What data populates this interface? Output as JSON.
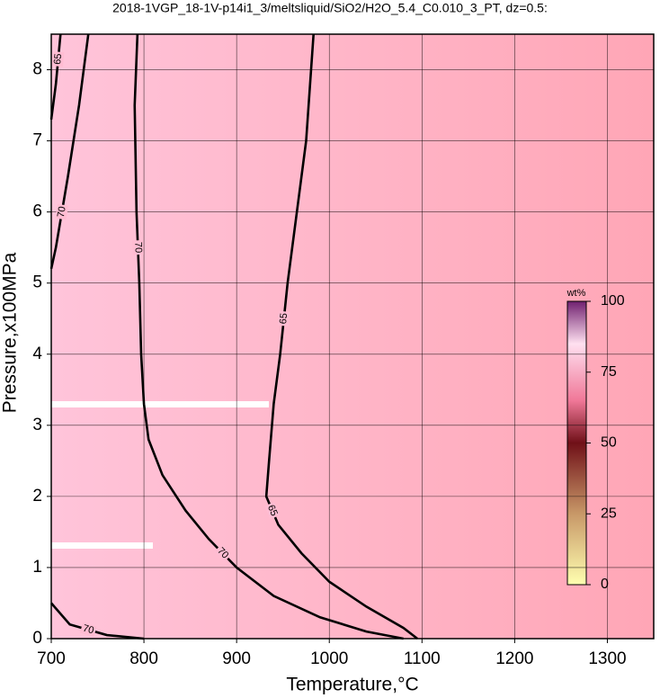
{
  "chart_data": {
    "type": "contour",
    "title": "2018-1VGP_18-1V-p14i1_3/meltsliquid/SiO2/H2O_5.4_C0.010_3_PT, dz=0.5:",
    "xlabel": "Temperature,°C",
    "ylabel": "Pressure,x100MPa",
    "xlim": [
      700,
      1350
    ],
    "ylim": [
      0,
      8.5
    ],
    "xticks": [
      700,
      800,
      900,
      1000,
      1100,
      1200,
      1300
    ],
    "yticks": [
      0,
      1,
      2,
      3,
      4,
      5,
      6,
      7,
      8
    ],
    "grid": true,
    "contours": [
      {
        "level": 70,
        "x": [
          793,
          790,
          792,
          795,
          797,
          800,
          805,
          820,
          845,
          870,
          900,
          940,
          990,
          1040,
          1080
        ],
        "y": [
          8.5,
          7.5,
          6,
          5,
          4,
          3.3,
          2.8,
          2.3,
          1.8,
          1.4,
          1.0,
          0.6,
          0.3,
          0.1,
          0
        ]
      },
      {
        "level": 65,
        "x": [
          983,
          975,
          965,
          955,
          947,
          940,
          935,
          932,
          945,
          970,
          1000,
          1040,
          1080,
          1095
        ],
        "y": [
          8.5,
          7,
          6,
          5,
          4,
          3.3,
          2.5,
          2.0,
          1.6,
          1.2,
          0.8,
          0.45,
          0.15,
          0
        ]
      },
      {
        "level": 70,
        "x": [
          740,
          730,
          718,
          705,
          700
        ],
        "y": [
          8.5,
          7.5,
          6.5,
          5.5,
          5.2
        ]
      },
      {
        "level": 65,
        "x": [
          710,
          705,
          700
        ],
        "y": [
          8.5,
          7.8,
          7.3
        ]
      },
      {
        "level": 70,
        "x": [
          700,
          720,
          760,
          800
        ],
        "y": [
          0.5,
          0.2,
          0.05,
          0
        ]
      }
    ],
    "colorbar": {
      "label": "wt%",
      "lim": [
        0,
        100
      ],
      "ticks": [
        0,
        25,
        50,
        75,
        100
      ]
    }
  }
}
